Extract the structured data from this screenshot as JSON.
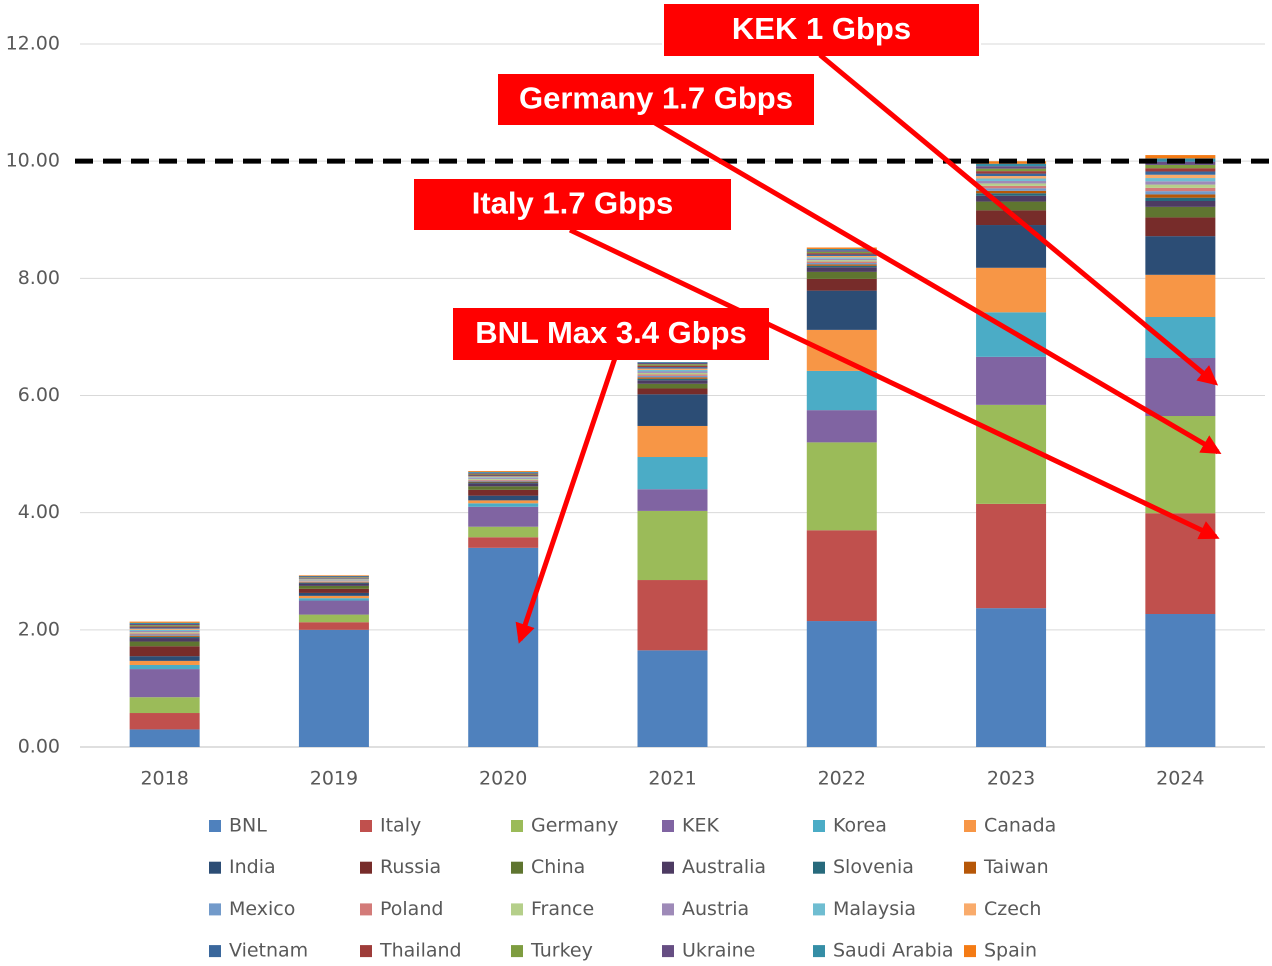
{
  "chart_data": {
    "type": "bar",
    "stacked": true,
    "categories": [
      "2018",
      "2019",
      "2020",
      "2021",
      "2022",
      "2023",
      "2024"
    ],
    "ylim": [
      0,
      12
    ],
    "yticks": [
      {
        "value": 0,
        "label": "0.00"
      },
      {
        "value": 2,
        "label": "2.00"
      },
      {
        "value": 4,
        "label": "4.00"
      },
      {
        "value": 6,
        "label": "6.00"
      },
      {
        "value": 8,
        "label": "8.00"
      },
      {
        "value": 10,
        "label": "10.00"
      },
      {
        "value": 12,
        "label": "12.00"
      }
    ],
    "grid": true,
    "reference_line": 10,
    "legend": "bottom",
    "annotations": [
      {
        "text": "KEK 1 Gbps"
      },
      {
        "text": "Germany 1.7 Gbps"
      },
      {
        "text": "Italy 1.7 Gbps"
      },
      {
        "text": "BNL Max 3.4 Gbps"
      }
    ],
    "series": [
      {
        "name": "BNL",
        "color": "#4f81bd",
        "values": [
          0.3,
          2.0,
          3.4,
          1.65,
          2.15,
          2.37,
          2.27
        ]
      },
      {
        "name": "Italy",
        "color": "#c0504d",
        "values": [
          0.28,
          0.13,
          0.18,
          1.2,
          1.55,
          1.78,
          1.72
        ]
      },
      {
        "name": "Germany",
        "color": "#9bbb59",
        "values": [
          0.27,
          0.13,
          0.18,
          1.18,
          1.5,
          1.69,
          1.66
        ]
      },
      {
        "name": "KEK",
        "color": "#8064a2",
        "values": [
          0.48,
          0.24,
          0.34,
          0.37,
          0.55,
          0.82,
          0.99
        ]
      },
      {
        "name": "Korea",
        "color": "#4bacc6",
        "values": [
          0.07,
          0.04,
          0.06,
          0.55,
          0.67,
          0.76,
          0.7
        ]
      },
      {
        "name": "Canada",
        "color": "#f79646",
        "values": [
          0.07,
          0.04,
          0.05,
          0.53,
          0.7,
          0.76,
          0.72
        ]
      },
      {
        "name": "India",
        "color": "#2c4d75",
        "values": [
          0.08,
          0.05,
          0.08,
          0.54,
          0.67,
          0.73,
          0.66
        ]
      },
      {
        "name": "Russia",
        "color": "#772c2a",
        "values": [
          0.17,
          0.07,
          0.1,
          0.1,
          0.2,
          0.25,
          0.32
        ]
      },
      {
        "name": "China",
        "color": "#5f7530",
        "values": [
          0.08,
          0.05,
          0.06,
          0.08,
          0.12,
          0.15,
          0.18
        ]
      },
      {
        "name": "Australia",
        "color": "#4d3b62",
        "values": [
          0.06,
          0.04,
          0.05,
          0.06,
          0.08,
          0.1,
          0.1
        ]
      },
      {
        "name": "Slovenia",
        "color": "#276a7c",
        "values": [
          0.02,
          0.01,
          0.015,
          0.025,
          0.024,
          0.042,
          0.056
        ]
      },
      {
        "name": "Taiwan",
        "color": "#b65708",
        "values": [
          0.02,
          0.01,
          0.015,
          0.025,
          0.024,
          0.042,
          0.056
        ]
      },
      {
        "name": "Mexico",
        "color": "#729aca",
        "values": [
          0.02,
          0.01,
          0.015,
          0.025,
          0.024,
          0.042,
          0.056
        ]
      },
      {
        "name": "Poland",
        "color": "#d37b79",
        "values": [
          0.02,
          0.01,
          0.015,
          0.025,
          0.024,
          0.042,
          0.056
        ]
      },
      {
        "name": "France",
        "color": "#b5cf8a",
        "values": [
          0.02,
          0.01,
          0.015,
          0.025,
          0.024,
          0.042,
          0.056
        ]
      },
      {
        "name": "Austria",
        "color": "#9e8ab8",
        "values": [
          0.02,
          0.01,
          0.015,
          0.025,
          0.024,
          0.042,
          0.056
        ]
      },
      {
        "name": "Malaysia",
        "color": "#6fbdd1",
        "values": [
          0.02,
          0.01,
          0.015,
          0.025,
          0.024,
          0.042,
          0.056
        ]
      },
      {
        "name": "Czech",
        "color": "#f9ab6b",
        "values": [
          0.02,
          0.01,
          0.015,
          0.025,
          0.024,
          0.042,
          0.056
        ]
      },
      {
        "name": "Vietnam",
        "color": "#3a679c",
        "values": [
          0.02,
          0.01,
          0.015,
          0.025,
          0.024,
          0.042,
          0.056
        ]
      },
      {
        "name": "Thailand",
        "color": "#9e3c39",
        "values": [
          0.02,
          0.01,
          0.015,
          0.025,
          0.024,
          0.042,
          0.056
        ]
      },
      {
        "name": "Turkey",
        "color": "#7e9d40",
        "values": [
          0.02,
          0.01,
          0.015,
          0.025,
          0.024,
          0.042,
          0.056
        ]
      },
      {
        "name": "Ukraine",
        "color": "#664e83",
        "values": [
          0.02,
          0.01,
          0.015,
          0.025,
          0.024,
          0.042,
          0.056
        ]
      },
      {
        "name": "Saudi Arabia",
        "color": "#358ea6",
        "values": [
          0.02,
          0.01,
          0.015,
          0.025,
          0.024,
          0.042,
          0.056
        ]
      },
      {
        "name": "Spain",
        "color": "#f47b15",
        "values": [
          0.02,
          0.01,
          0.015,
          0.025,
          0.024,
          0.042,
          0.056
        ]
      }
    ]
  }
}
